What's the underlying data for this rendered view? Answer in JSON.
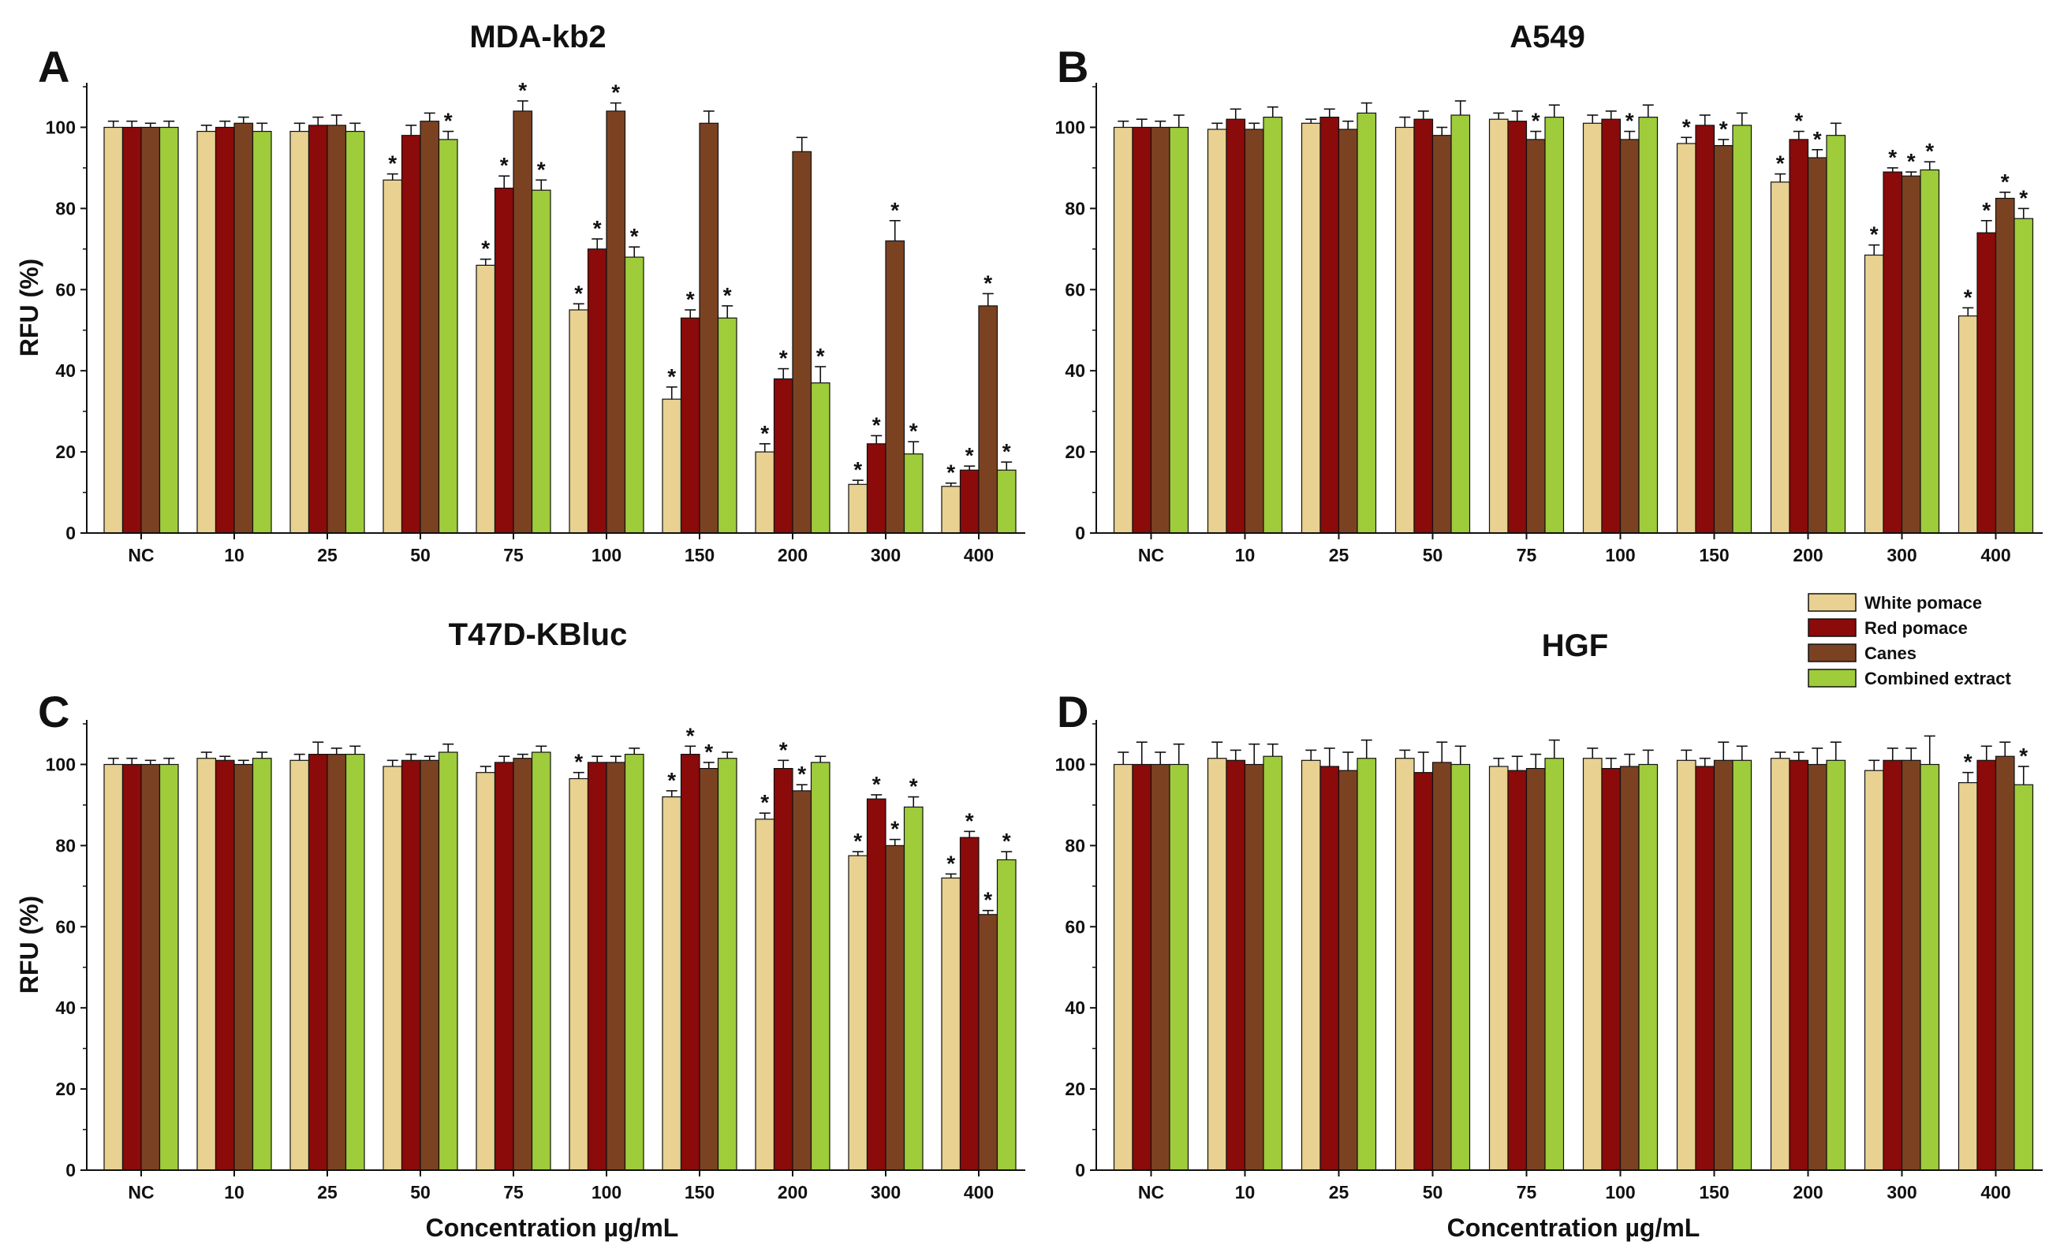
{
  "colors": {
    "white_pomace": "#E8D191",
    "red_pomace": "#8B0A0A",
    "canes": "#7B4222",
    "combined_extract": "#9FCC3A",
    "axis": "#111111"
  },
  "shared": {
    "categories": [
      "NC",
      "10",
      "25",
      "50",
      "75",
      "100",
      "150",
      "200",
      "300",
      "400"
    ],
    "legend": [
      "White pomace",
      "Red pomace",
      "Canes",
      "Combined extract"
    ],
    "ylabel": "RFU (%)",
    "xlabel": "Concentration µg/mL",
    "yticks": [
      0,
      20,
      40,
      60,
      80,
      100
    ],
    "ylim": [
      0,
      110
    ]
  },
  "chart_data": [
    {
      "type": "bar",
      "panel": "A",
      "title": "MDA-kb2",
      "categories": [
        "NC",
        "10",
        "25",
        "50",
        "75",
        "100",
        "150",
        "200",
        "300",
        "400"
      ],
      "ylabel": "RFU (%)",
      "xlabel": "",
      "ylim": [
        0,
        110
      ],
      "series": [
        {
          "name": "White pomace",
          "values": [
            100,
            99,
            99,
            87,
            66,
            55,
            33,
            20,
            12,
            11.5
          ],
          "err": [
            1.5,
            1.5,
            2,
            1.5,
            1.5,
            1.5,
            3,
            2,
            1,
            0.8
          ],
          "sig": [
            false,
            false,
            false,
            true,
            true,
            true,
            true,
            true,
            true,
            true
          ]
        },
        {
          "name": "Red pomace",
          "values": [
            100,
            100,
            100.5,
            98,
            85,
            70,
            53,
            38,
            22,
            15.5
          ],
          "err": [
            1.5,
            1.5,
            2,
            2.5,
            3,
            2.5,
            2,
            2.5,
            2,
            1
          ],
          "sig": [
            false,
            false,
            false,
            false,
            true,
            true,
            true,
            true,
            true,
            true
          ]
        },
        {
          "name": "Canes",
          "values": [
            100,
            101,
            100.5,
            101.5,
            104,
            104,
            101,
            94,
            72,
            56
          ],
          "err": [
            1,
            1.5,
            2.5,
            2,
            2.5,
            2,
            3,
            3.5,
            5,
            3
          ],
          "sig": [
            false,
            false,
            false,
            false,
            true,
            true,
            false,
            false,
            true,
            true
          ]
        },
        {
          "name": "Combined extract",
          "values": [
            100,
            99,
            99,
            97,
            84.5,
            68,
            53,
            37,
            19.5,
            15.5
          ],
          "err": [
            1.5,
            2,
            2,
            2,
            2.5,
            2.5,
            3,
            4,
            3,
            2
          ],
          "sig": [
            false,
            false,
            false,
            true,
            true,
            true,
            true,
            true,
            true,
            true
          ]
        }
      ]
    },
    {
      "type": "bar",
      "panel": "B",
      "title": "A549",
      "categories": [
        "NC",
        "10",
        "25",
        "50",
        "75",
        "100",
        "150",
        "200",
        "300",
        "400"
      ],
      "ylabel": "",
      "xlabel": "",
      "ylim": [
        0,
        110
      ],
      "series": [
        {
          "name": "White pomace",
          "values": [
            100,
            99.5,
            101,
            100,
            102,
            101,
            96,
            86.5,
            68.5,
            53.5
          ],
          "err": [
            1.5,
            1.5,
            1,
            2.5,
            1.5,
            2,
            1.5,
            2,
            2.5,
            2
          ],
          "sig": [
            false,
            false,
            false,
            false,
            false,
            false,
            true,
            true,
            true,
            true
          ]
        },
        {
          "name": "Red pomace",
          "values": [
            100,
            102,
            102.5,
            102,
            101.5,
            102,
            100.5,
            97,
            89,
            74
          ],
          "err": [
            2,
            2.5,
            2,
            2,
            2.5,
            2,
            2.5,
            2,
            1,
            3
          ],
          "sig": [
            false,
            false,
            false,
            false,
            false,
            false,
            false,
            true,
            true,
            true
          ]
        },
        {
          "name": "Canes",
          "values": [
            100,
            99.5,
            99.5,
            98,
            97,
            97,
            95.5,
            92.5,
            88,
            82.5
          ],
          "err": [
            1.5,
            1.5,
            2,
            2,
            2,
            2,
            1.5,
            2,
            1,
            1.5
          ],
          "sig": [
            false,
            false,
            false,
            false,
            true,
            true,
            true,
            true,
            true,
            true
          ]
        },
        {
          "name": "Combined extract",
          "values": [
            100,
            102.5,
            103.5,
            103,
            102.5,
            102.5,
            100.5,
            98,
            89.5,
            77.5
          ],
          "err": [
            3,
            2.5,
            2.5,
            3.5,
            3,
            3,
            3,
            3,
            2,
            2.5
          ],
          "sig": [
            false,
            false,
            false,
            false,
            false,
            false,
            false,
            false,
            true,
            true
          ]
        }
      ]
    },
    {
      "type": "bar",
      "panel": "C",
      "title": "T47D-KBluc",
      "categories": [
        "NC",
        "10",
        "25",
        "50",
        "75",
        "100",
        "150",
        "200",
        "300",
        "400"
      ],
      "ylabel": "RFU (%)",
      "xlabel": "Concentration µg/mL",
      "ylim": [
        0,
        110
      ],
      "series": [
        {
          "name": "White pomace",
          "values": [
            100,
            101.5,
            101,
            99.5,
            98,
            96.5,
            92,
            86.5,
            77.5,
            72
          ],
          "err": [
            1.5,
            1.5,
            1.5,
            1.5,
            1.5,
            1.5,
            1.5,
            1.5,
            1,
            1
          ],
          "sig": [
            false,
            false,
            false,
            false,
            false,
            true,
            true,
            true,
            true,
            true
          ]
        },
        {
          "name": "Red pomace",
          "values": [
            100,
            101,
            102.5,
            101,
            100.5,
            100.5,
            102.5,
            99,
            91.5,
            82
          ],
          "err": [
            1.5,
            1,
            3,
            1.5,
            1.5,
            1.5,
            2,
            2,
            1,
            1.5
          ],
          "sig": [
            false,
            false,
            false,
            false,
            false,
            false,
            true,
            true,
            true,
            true
          ]
        },
        {
          "name": "Canes",
          "values": [
            100,
            100,
            102.5,
            101,
            101.5,
            100.5,
            99,
            93.5,
            80,
            63
          ],
          "err": [
            1,
            1,
            1.5,
            1,
            1,
            1.5,
            1.5,
            1.5,
            1.5,
            1
          ],
          "sig": [
            false,
            false,
            false,
            false,
            false,
            false,
            true,
            true,
            true,
            true
          ]
        },
        {
          "name": "Combined extract",
          "values": [
            100,
            101.5,
            102.5,
            103,
            103,
            102.5,
            101.5,
            100.5,
            89.5,
            76.5
          ],
          "err": [
            1.5,
            1.5,
            2,
            2,
            1.5,
            1.5,
            1.5,
            1.5,
            2.5,
            2
          ],
          "sig": [
            false,
            false,
            false,
            false,
            false,
            false,
            false,
            false,
            true,
            true
          ]
        }
      ]
    },
    {
      "type": "bar",
      "panel": "D",
      "title": "HGF",
      "categories": [
        "NC",
        "10",
        "25",
        "50",
        "75",
        "100",
        "150",
        "200",
        "300",
        "400"
      ],
      "ylabel": "",
      "xlabel": "Concentration µg/mL",
      "ylim": [
        0,
        110
      ],
      "series": [
        {
          "name": "White pomace",
          "values": [
            100,
            101.5,
            101,
            101.5,
            99.5,
            101.5,
            101,
            101.5,
            98.5,
            95.5
          ],
          "err": [
            3,
            4,
            2.5,
            2,
            2,
            2.5,
            2.5,
            1.5,
            2.5,
            2.5
          ],
          "sig": [
            false,
            false,
            false,
            false,
            false,
            false,
            false,
            false,
            false,
            true
          ]
        },
        {
          "name": "Red pomace",
          "values": [
            100,
            101,
            99.5,
            98,
            98.5,
            99,
            99.5,
            101,
            101,
            101
          ],
          "err": [
            5.5,
            2.5,
            4.5,
            5,
            3.5,
            2.5,
            2,
            2,
            3,
            3.5
          ],
          "sig": [
            false,
            false,
            false,
            false,
            false,
            false,
            false,
            false,
            false,
            false
          ]
        },
        {
          "name": "Canes",
          "values": [
            100,
            100,
            98.5,
            100.5,
            99,
            99.5,
            101,
            100,
            101,
            102
          ],
          "err": [
            3,
            5,
            4.5,
            5,
            3.5,
            3,
            4.5,
            4,
            3,
            3.5
          ],
          "sig": [
            false,
            false,
            false,
            false,
            false,
            false,
            false,
            false,
            false,
            false
          ]
        },
        {
          "name": "Combined extract",
          "values": [
            100,
            102,
            101.5,
            100,
            101.5,
            100,
            101,
            101,
            100,
            95
          ],
          "err": [
            5,
            3,
            4.5,
            4.5,
            4.5,
            3.5,
            3.5,
            4.5,
            7,
            4.5
          ],
          "sig": [
            false,
            false,
            false,
            false,
            false,
            false,
            false,
            false,
            false,
            true
          ]
        }
      ]
    }
  ]
}
